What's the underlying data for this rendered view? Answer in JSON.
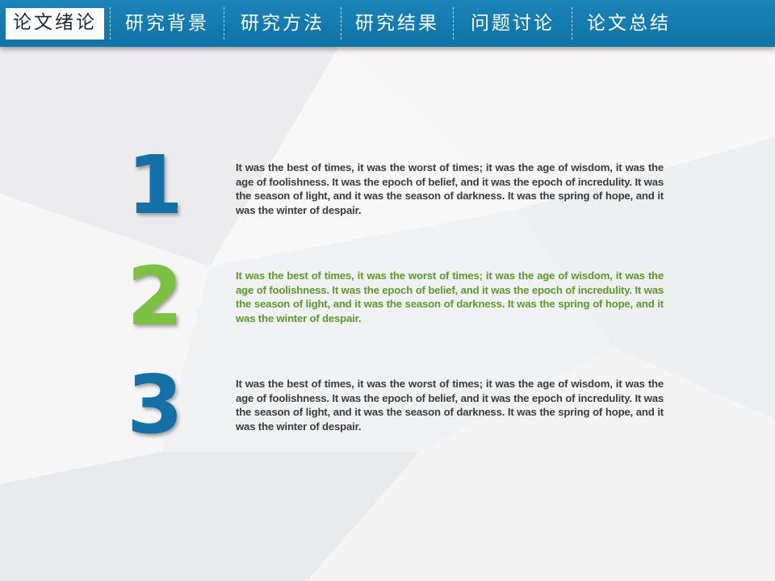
{
  "nav": {
    "tabs": [
      {
        "label": "论文绪论",
        "active": true
      },
      {
        "label": "研究背景",
        "active": false
      },
      {
        "label": "研究方法",
        "active": false
      },
      {
        "label": "研究结果",
        "active": false
      },
      {
        "label": "问题讨论",
        "active": false
      },
      {
        "label": "论文总结",
        "active": false
      }
    ]
  },
  "colors": {
    "bar": "#1479ad",
    "blue": "#1471a8",
    "green": "#7dc142",
    "text_dark": "#3d3d3d",
    "text_green": "#5d9a2b"
  },
  "items": [
    {
      "number": "1",
      "number_color": "#1471a8",
      "text": "It was the best of times, it was the worst of times; it was the age of wisdom, it was the age of foolishness. It was the epoch of belief, and it was the epoch of incredulity. It was the season of light, and it was the season of darkness. It was the spring of hope, and it was the winter of despair.",
      "text_color": "#3d3d3d"
    },
    {
      "number": "2",
      "number_color": "#7dc142",
      "text": "It was the best of times, it was the worst of times; it was the age of wisdom, it was the age of foolishness. It was the epoch of belief, and it was the epoch of incredulity. It was the season of light, and it was the season of darkness. It was the spring of hope, and it was the winter of despair.",
      "text_color": "#5d9a2b"
    },
    {
      "number": "3",
      "number_color": "#1471a8",
      "text": "It was the best of times, it was the worst of times; it was the age of wisdom, it was the age of foolishness. It was the epoch of belief, and it was the epoch of incredulity. It was the season of light, and it was the season of darkness. It was the spring of hope, and it was the winter of despair.",
      "text_color": "#3d3d3d"
    }
  ]
}
